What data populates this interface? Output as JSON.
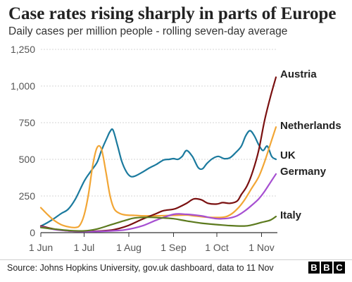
{
  "chart_data": {
    "type": "line",
    "title": "Case rates rising sharply in parts of Europe",
    "subtitle": "Daily cases per million people - rolling seven-day average",
    "ylim": [
      0,
      1250
    ],
    "yticks": [
      0,
      250,
      500,
      750,
      1000,
      1250
    ],
    "ytick_labels": [
      "0",
      "250",
      "500",
      "750",
      "1,000",
      "1,250"
    ],
    "xlim": [
      "2021-06-01",
      "2021-11-11"
    ],
    "xticks": [
      "2021-06-01",
      "2021-07-01",
      "2021-08-01",
      "2021-09-01",
      "2021-10-01",
      "2021-11-01"
    ],
    "xtick_labels": [
      "1 Jun",
      "1 Jul",
      "1 Aug",
      "1 Sep",
      "1 Oct",
      "1 Nov"
    ],
    "grid": "horizontal",
    "legend": "direct labels at line ends",
    "series": [
      {
        "name": "UK",
        "color": "#1b7a9e",
        "x": [
          "2021-06-01",
          "2021-06-05",
          "2021-06-10",
          "2021-06-15",
          "2021-06-20",
          "2021-06-25",
          "2021-07-01",
          "2021-07-05",
          "2021-07-10",
          "2021-07-13",
          "2021-07-17",
          "2021-07-19",
          "2021-07-21",
          "2021-07-24",
          "2021-07-27",
          "2021-07-30",
          "2021-08-02",
          "2021-08-05",
          "2021-08-10",
          "2021-08-15",
          "2021-08-20",
          "2021-08-25",
          "2021-08-29",
          "2021-09-01",
          "2021-09-04",
          "2021-09-07",
          "2021-09-10",
          "2021-09-14",
          "2021-09-18",
          "2021-09-21",
          "2021-09-24",
          "2021-09-28",
          "2021-10-02",
          "2021-10-06",
          "2021-10-10",
          "2021-10-14",
          "2021-10-18",
          "2021-10-21",
          "2021-10-24",
          "2021-10-27",
          "2021-10-30",
          "2021-11-02",
          "2021-11-05",
          "2021-11-08",
          "2021-11-11"
        ],
        "y": [
          45,
          65,
          95,
          130,
          160,
          230,
          350,
          410,
          480,
          560,
          650,
          690,
          700,
          600,
          490,
          420,
          385,
          385,
          410,
          440,
          465,
          495,
          500,
          505,
          500,
          520,
          560,
          520,
          445,
          435,
          470,
          505,
          520,
          505,
          510,
          545,
          590,
          660,
          695,
          660,
          600,
          560,
          590,
          520,
          500
        ]
      },
      {
        "name": "Netherlands",
        "color": "#f2a635",
        "x": [
          "2021-06-01",
          "2021-06-05",
          "2021-06-10",
          "2021-06-15",
          "2021-06-20",
          "2021-06-25",
          "2021-06-28",
          "2021-07-01",
          "2021-07-04",
          "2021-07-07",
          "2021-07-10",
          "2021-07-13",
          "2021-07-16",
          "2021-07-19",
          "2021-07-22",
          "2021-07-26",
          "2021-07-30",
          "2021-08-05",
          "2021-08-10",
          "2021-08-20",
          "2021-09-01",
          "2021-09-10",
          "2021-09-15",
          "2021-09-25",
          "2021-10-05",
          "2021-10-10",
          "2021-10-15",
          "2021-10-20",
          "2021-10-25",
          "2021-10-30",
          "2021-11-03",
          "2021-11-07",
          "2021-11-11"
        ],
        "y": [
          170,
          130,
          85,
          55,
          40,
          35,
          50,
          120,
          260,
          460,
          580,
          570,
          420,
          250,
          160,
          130,
          120,
          118,
          115,
          115,
          118,
          120,
          115,
          105,
          105,
          120,
          160,
          220,
          300,
          380,
          480,
          600,
          720
        ]
      },
      {
        "name": "Austria",
        "color": "#7a1010",
        "x": [
          "2021-06-01",
          "2021-06-10",
          "2021-06-20",
          "2021-07-01",
          "2021-07-10",
          "2021-07-20",
          "2021-07-25",
          "2021-08-01",
          "2021-08-10",
          "2021-08-20",
          "2021-08-25",
          "2021-09-01",
          "2021-09-05",
          "2021-09-10",
          "2021-09-15",
          "2021-09-20",
          "2021-09-25",
          "2021-10-01",
          "2021-10-05",
          "2021-10-10",
          "2021-10-15",
          "2021-10-18",
          "2021-10-22",
          "2021-10-26",
          "2021-10-30",
          "2021-11-03",
          "2021-11-07",
          "2021-11-11"
        ],
        "y": [
          45,
          25,
          12,
          8,
          10,
          18,
          28,
          50,
          90,
          130,
          150,
          160,
          175,
          200,
          230,
          225,
          200,
          195,
          205,
          200,
          215,
          260,
          320,
          420,
          560,
          760,
          920,
          1060
        ]
      },
      {
        "name": "Germany",
        "color": "#a64fd1",
        "x": [
          "2021-06-01",
          "2021-06-10",
          "2021-06-20",
          "2021-07-01",
          "2021-07-10",
          "2021-07-20",
          "2021-07-30",
          "2021-08-10",
          "2021-08-20",
          "2021-09-01",
          "2021-09-10",
          "2021-09-20",
          "2021-09-25",
          "2021-10-01",
          "2021-10-05",
          "2021-10-10",
          "2021-10-15",
          "2021-10-20",
          "2021-10-25",
          "2021-10-30",
          "2021-11-03",
          "2021-11-07",
          "2021-11-11"
        ],
        "y": [
          40,
          22,
          12,
          7,
          8,
          12,
          20,
          45,
          85,
          125,
          125,
          115,
          105,
          95,
          95,
          100,
          115,
          145,
          185,
          230,
          280,
          340,
          400
        ]
      },
      {
        "name": "Italy",
        "color": "#5c7a1e",
        "x": [
          "2021-06-01",
          "2021-06-10",
          "2021-06-20",
          "2021-07-01",
          "2021-07-10",
          "2021-07-20",
          "2021-07-30",
          "2021-08-05",
          "2021-08-15",
          "2021-08-25",
          "2021-09-01",
          "2021-09-10",
          "2021-09-20",
          "2021-10-01",
          "2021-10-10",
          "2021-10-20",
          "2021-10-25",
          "2021-11-01",
          "2021-11-07",
          "2021-11-11"
        ],
        "y": [
          35,
          25,
          15,
          12,
          25,
          55,
          85,
          100,
          105,
          100,
          95,
          80,
          65,
          55,
          48,
          45,
          52,
          70,
          85,
          110
        ]
      }
    ]
  },
  "footer": {
    "source": "Source: Johns Hopkins University, gov.uk dashboard, data to 11 Nov",
    "logo_letters": [
      "B",
      "B",
      "C"
    ]
  }
}
